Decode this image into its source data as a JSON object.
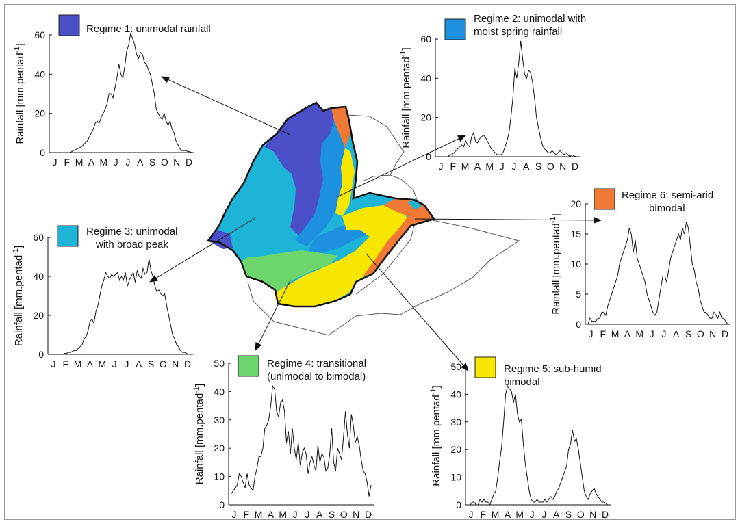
{
  "colors": {
    "regime1": "#4B4FC8",
    "regime2": "#1E90E0",
    "regime3": "#1EB4D8",
    "regime4": "#6CD66C",
    "regime5": "#F6E600",
    "regime6": "#F07A35",
    "map_outline": "#111111",
    "neighbor_outline": "#555555"
  },
  "months": [
    "J",
    "F",
    "M",
    "A",
    "M",
    "J",
    "J",
    "A",
    "S",
    "O",
    "N",
    "D"
  ],
  "ylabel_text": "Rainfall [mm.pentad",
  "ylabel_sup": "-1",
  "ylabel_close": "]",
  "chart_data": [
    {
      "type": "line",
      "legend_line1": "Regime 1: unimodal rainfall",
      "legend_line2": "",
      "color": "#4B4FC8",
      "ylim": [
        0,
        60
      ],
      "yticks": [
        0,
        20,
        40,
        60
      ],
      "x": [
        1,
        2,
        3,
        4,
        5,
        6,
        7,
        8,
        9,
        10,
        11,
        12,
        13,
        14,
        15,
        16,
        17,
        18,
        19,
        20,
        21,
        22,
        23,
        24,
        25,
        26,
        27,
        28,
        29,
        30,
        31,
        32,
        33,
        34,
        35,
        36,
        37,
        38,
        39,
        40,
        41,
        42,
        43,
        44,
        45,
        46,
        47,
        48,
        49,
        50,
        51,
        52,
        53,
        54,
        55,
        56,
        57,
        58,
        59,
        60,
        61,
        62,
        63,
        64,
        65,
        66,
        67,
        68,
        69,
        70,
        71,
        72
      ],
      "values": [
        0,
        0,
        0,
        0,
        0,
        0,
        0,
        0,
        0,
        0,
        0.5,
        1,
        1.5,
        2,
        2.5,
        3,
        4,
        5,
        6,
        8,
        10,
        12,
        15,
        16,
        15,
        18,
        20,
        22,
        25,
        30,
        30,
        28,
        33,
        38,
        45,
        40,
        38,
        44,
        52,
        55,
        61,
        58,
        55,
        50,
        48,
        51,
        50,
        46,
        45,
        42,
        40,
        35,
        30,
        22,
        20,
        18,
        17,
        20,
        16,
        14,
        16,
        12,
        10,
        6,
        4,
        2,
        1,
        1,
        1,
        0.5,
        0.5,
        0
      ],
      "title": "",
      "xlabel": ""
    },
    {
      "type": "line",
      "legend_line1": "Regime 2: unimodal with",
      "legend_line2": "moist spring rainfall",
      "color": "#1E90E0",
      "ylim": [
        0,
        60
      ],
      "yticks": [
        0,
        20,
        40,
        60
      ],
      "x": [
        1,
        2,
        3,
        4,
        5,
        6,
        7,
        8,
        9,
        10,
        11,
        12,
        13,
        14,
        15,
        16,
        17,
        18,
        19,
        20,
        21,
        22,
        23,
        24,
        25,
        26,
        27,
        28,
        29,
        30,
        31,
        32,
        33,
        34,
        35,
        36,
        37,
        38,
        39,
        40,
        41,
        42,
        43,
        44,
        45,
        46,
        47,
        48,
        49,
        50,
        51,
        52,
        53,
        54,
        55,
        56,
        57,
        58,
        59,
        60,
        61,
        62,
        63,
        64,
        65,
        66,
        67,
        68,
        69,
        70,
        71,
        72
      ],
      "values": [
        0,
        0,
        0,
        0,
        0,
        0,
        1,
        1,
        2,
        3,
        4,
        5,
        6,
        5,
        8,
        6,
        5,
        10,
        12,
        8,
        7,
        9,
        10,
        11,
        10,
        8,
        6,
        4,
        3,
        2,
        1,
        1,
        1,
        2,
        5,
        8,
        12,
        20,
        30,
        45,
        40,
        48,
        59,
        50,
        42,
        40,
        44,
        43,
        38,
        30,
        20,
        15,
        10,
        6,
        4,
        3,
        2,
        2,
        3,
        2,
        1,
        2,
        3,
        2,
        1,
        2,
        1,
        0,
        1,
        0.5,
        0,
        0
      ],
      "title": "",
      "xlabel": ""
    },
    {
      "type": "line",
      "legend_line1": "Regime 3: unimodal",
      "legend_line2": "with broad peak",
      "color": "#1EB4D8",
      "ylim": [
        0,
        60
      ],
      "yticks": [
        0,
        20,
        40,
        60
      ],
      "x": [
        1,
        2,
        3,
        4,
        5,
        6,
        7,
        8,
        9,
        10,
        11,
        12,
        13,
        14,
        15,
        16,
        17,
        18,
        19,
        20,
        21,
        22,
        23,
        24,
        25,
        26,
        27,
        28,
        29,
        30,
        31,
        32,
        33,
        34,
        35,
        36,
        37,
        38,
        39,
        40,
        41,
        42,
        43,
        44,
        45,
        46,
        47,
        48,
        49,
        50,
        51,
        52,
        53,
        54,
        55,
        56,
        57,
        58,
        59,
        60,
        61,
        62,
        63,
        64,
        65,
        66,
        67,
        68,
        69,
        70,
        71,
        72
      ],
      "values": [
        0,
        0,
        0,
        0,
        0,
        0,
        0,
        0.5,
        0.5,
        1,
        1,
        1.5,
        2,
        2,
        3,
        4,
        5,
        8,
        9,
        12,
        17,
        18,
        16,
        22,
        25,
        30,
        35,
        38,
        42,
        40,
        39,
        41,
        40,
        41,
        42,
        38,
        40,
        38,
        42,
        35,
        38,
        40,
        42,
        37,
        43,
        40,
        39,
        44,
        41,
        42,
        49,
        43,
        40,
        35,
        32,
        33,
        31,
        30,
        31,
        25,
        20,
        15,
        10,
        8,
        5,
        4,
        2,
        1,
        1,
        0.5,
        0,
        0
      ],
      "title": "",
      "xlabel": ""
    },
    {
      "type": "line",
      "legend_line1": "Regime 4: transitional",
      "legend_line2": "(unimodal to bimodal)",
      "color": "#6CD66C",
      "ylim": [
        0,
        50
      ],
      "yticks": [
        0,
        10,
        20,
        30,
        40,
        50
      ],
      "x": [
        1,
        2,
        3,
        4,
        5,
        6,
        7,
        8,
        9,
        10,
        11,
        12,
        13,
        14,
        15,
        16,
        17,
        18,
        19,
        20,
        21,
        22,
        23,
        24,
        25,
        26,
        27,
        28,
        29,
        30,
        31,
        32,
        33,
        34,
        35,
        36,
        37,
        38,
        39,
        40,
        41,
        42,
        43,
        44,
        45,
        46,
        47,
        48,
        49,
        50,
        51,
        52,
        53,
        54,
        55,
        56,
        57,
        58,
        59,
        60,
        61,
        62,
        63,
        64,
        65,
        66,
        67,
        68,
        69,
        70,
        71,
        72
      ],
      "values": [
        4,
        5,
        6,
        7,
        11,
        10,
        8,
        6,
        11,
        7,
        6,
        5,
        10,
        13,
        17,
        17,
        20,
        27,
        28,
        30,
        35,
        42,
        41,
        33,
        31,
        36,
        37,
        33,
        22,
        26,
        18,
        27,
        20,
        16,
        22,
        14,
        18,
        20,
        18,
        11,
        15,
        17,
        14,
        12,
        21,
        15,
        18,
        17,
        12,
        13,
        18,
        27,
        15,
        12,
        20,
        18,
        16,
        24,
        33,
        25,
        20,
        32,
        28,
        22,
        24,
        21,
        16,
        12,
        11,
        8,
        3,
        7
      ],
      "title": "",
      "xlabel": ""
    },
    {
      "type": "line",
      "legend_line1": "Regime 5: sub-humid",
      "legend_line2": "bimodal",
      "color": "#F6E600",
      "ylim": [
        0,
        50
      ],
      "yticks": [
        0,
        10,
        20,
        30,
        40,
        50
      ],
      "x": [
        1,
        2,
        3,
        4,
        5,
        6,
        7,
        8,
        9,
        10,
        11,
        12,
        13,
        14,
        15,
        16,
        17,
        18,
        19,
        20,
        21,
        22,
        23,
        24,
        25,
        26,
        27,
        28,
        29,
        30,
        31,
        32,
        33,
        34,
        35,
        36,
        37,
        38,
        39,
        40,
        41,
        42,
        43,
        44,
        45,
        46,
        47,
        48,
        49,
        50,
        51,
        52,
        53,
        54,
        55,
        56,
        57,
        58,
        59,
        60,
        61,
        62,
        63,
        64,
        65,
        66,
        67,
        68,
        69,
        70,
        71,
        72
      ],
      "values": [
        0,
        0,
        1,
        1,
        0,
        0,
        2,
        1,
        2,
        1,
        1,
        0,
        2,
        4,
        5,
        10,
        16,
        21,
        30,
        40,
        43,
        42,
        41,
        37,
        40,
        33,
        30,
        31,
        22,
        15,
        10,
        5,
        2,
        1,
        1,
        2,
        1,
        1,
        1,
        2,
        1,
        2,
        3,
        2,
        3,
        5,
        6,
        8,
        10,
        12,
        14,
        20,
        22,
        27,
        23,
        24,
        20,
        15,
        10,
        5,
        3,
        2,
        4,
        5,
        6,
        4,
        3,
        2,
        1,
        1,
        0.5,
        0
      ],
      "title": "",
      "xlabel": ""
    },
    {
      "type": "line",
      "legend_line1": "Regime 6: semi-arid",
      "legend_line2": "bimodal",
      "color": "#F07A35",
      "ylim": [
        0,
        20
      ],
      "yticks": [
        0,
        5,
        10,
        15,
        20
      ],
      "x": [
        1,
        2,
        3,
        4,
        5,
        6,
        7,
        8,
        9,
        10,
        11,
        12,
        13,
        14,
        15,
        16,
        17,
        18,
        19,
        20,
        21,
        22,
        23,
        24,
        25,
        26,
        27,
        28,
        29,
        30,
        31,
        32,
        33,
        34,
        35,
        36,
        37,
        38,
        39,
        40,
        41,
        42,
        43,
        44,
        45,
        46,
        47,
        48,
        49,
        50,
        51,
        52,
        53,
        54,
        55,
        56,
        57,
        58,
        59,
        60,
        61,
        62,
        63,
        64,
        65,
        66,
        67,
        68,
        69,
        70,
        71,
        72
      ],
      "values": [
        0,
        1,
        0.5,
        0.5,
        0.5,
        1,
        1,
        2,
        2,
        1.5,
        3,
        4,
        5,
        6,
        7,
        8,
        10,
        11,
        12,
        13,
        14,
        16,
        15,
        12,
        14,
        11,
        10,
        9,
        8,
        7,
        5,
        4,
        3,
        2,
        1.5,
        2,
        4,
        6,
        8,
        8,
        7,
        9,
        11,
        12,
        13,
        14,
        15,
        14,
        16,
        15,
        17,
        16,
        13,
        10,
        9,
        7,
        6,
        4,
        3,
        2,
        2,
        1.5,
        1,
        1,
        2,
        1.5,
        1,
        2,
        1,
        1,
        0.5,
        0
      ],
      "title": "",
      "xlabel": ""
    }
  ]
}
